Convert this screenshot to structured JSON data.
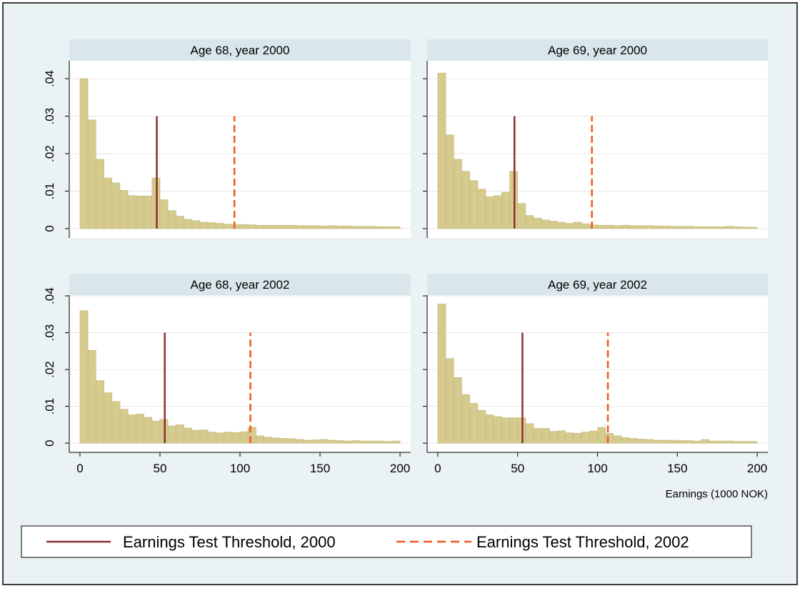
{
  "chart_data": [
    {
      "type": "histogram",
      "title": "Age 68, year 2000",
      "color": "#d6cb8e",
      "bins": [
        0,
        5,
        10,
        15,
        20,
        25,
        30,
        35,
        40,
        45,
        50,
        55,
        60,
        65,
        70,
        75,
        80,
        85,
        90,
        95,
        100,
        105,
        110,
        115,
        120,
        125,
        130,
        135,
        140,
        145,
        150,
        155,
        160,
        165,
        170,
        175,
        180,
        185,
        190,
        195,
        200
      ],
      "values": [
        0.04,
        0.029,
        0.0185,
        0.0135,
        0.0122,
        0.0102,
        0.0088,
        0.0087,
        0.0087,
        0.0135,
        0.0077,
        0.0048,
        0.0033,
        0.0025,
        0.0021,
        0.0017,
        0.0016,
        0.0014,
        0.0012,
        0.0011,
        0.0011,
        0.001,
        0.0009,
        0.0009,
        0.0009,
        0.0009,
        0.0009,
        0.0008,
        0.0008,
        0.0008,
        0.0007,
        0.0008,
        0.0007,
        0.0007,
        0.0006,
        0.0006,
        0.0006,
        0.0005,
        0.0005,
        0.0005
      ],
      "thresholds": [
        48,
        96.5
      ],
      "xlim": [
        -6.67,
        206.67
      ],
      "ylim": [
        -0.0025,
        0.0448
      ],
      "yticks": [
        0,
        {
          "value": 0.01,
          "label": ".01"
        },
        {
          "value": 0.02,
          "label": ".02"
        },
        {
          "value": 0.03,
          "label": ".03"
        },
        {
          "value": 0.04,
          "label": ".04"
        }
      ],
      "grid": true
    },
    {
      "type": "histogram",
      "title": "Age 69, year 2000",
      "color": "#d6cb8e",
      "bins": [
        0,
        5,
        10,
        15,
        20,
        25,
        30,
        35,
        40,
        45,
        50,
        55,
        60,
        65,
        70,
        75,
        80,
        85,
        90,
        95,
        100,
        105,
        110,
        115,
        120,
        125,
        130,
        135,
        140,
        145,
        150,
        155,
        160,
        165,
        170,
        175,
        180,
        185,
        190,
        195,
        200
      ],
      "values": [
        0.0415,
        0.025,
        0.0185,
        0.0153,
        0.0128,
        0.0105,
        0.0085,
        0.0088,
        0.0097,
        0.0153,
        0.0067,
        0.0035,
        0.0028,
        0.0023,
        0.002,
        0.0017,
        0.0014,
        0.0017,
        0.0013,
        0.001,
        0.0009,
        0.0009,
        0.0008,
        0.0009,
        0.0008,
        0.0008,
        0.0008,
        0.0007,
        0.0007,
        0.0006,
        0.0006,
        0.0006,
        0.0005,
        0.0005,
        0.0005,
        0.0005,
        0.0006,
        0.0005,
        0.0004,
        0.0004
      ],
      "thresholds": [
        48,
        96.5
      ],
      "xlim": [
        -6.67,
        206.67
      ],
      "ylim": [
        -0.0025,
        0.0448
      ],
      "yticks": [
        0,
        0.01,
        0.02,
        0.03,
        0.04
      ],
      "grid": true
    },
    {
      "type": "histogram",
      "title": "Age 68, year 2002",
      "color": "#d6cb8e",
      "bins": [
        0,
        5,
        10,
        15,
        20,
        25,
        30,
        35,
        40,
        45,
        50,
        55,
        60,
        65,
        70,
        75,
        80,
        85,
        90,
        95,
        100,
        105,
        110,
        115,
        120,
        125,
        130,
        135,
        140,
        145,
        150,
        155,
        160,
        165,
        170,
        175,
        180,
        185,
        190,
        195,
        200
      ],
      "values": [
        0.036,
        0.0252,
        0.017,
        0.0137,
        0.0113,
        0.0092,
        0.0077,
        0.0079,
        0.007,
        0.006,
        0.0065,
        0.0047,
        0.005,
        0.0041,
        0.0035,
        0.0036,
        0.003,
        0.0028,
        0.003,
        0.0029,
        0.0031,
        0.0043,
        0.002,
        0.0016,
        0.0014,
        0.0013,
        0.0012,
        0.001,
        0.0008,
        0.0009,
        0.001,
        0.0008,
        0.0007,
        0.0006,
        0.0007,
        0.0006,
        0.0006,
        0.0006,
        0.0005,
        0.0006
      ],
      "thresholds": [
        53,
        106.5
      ],
      "xlim": [
        -6.67,
        206.67
      ],
      "ylim": [
        -0.0025,
        0.0402
      ],
      "xticks": [
        0,
        50,
        100,
        150,
        200
      ],
      "yticks": [
        0,
        {
          "value": 0.01,
          "label": ".01"
        },
        {
          "value": 0.02,
          "label": ".02"
        },
        {
          "value": 0.03,
          "label": ".03"
        },
        {
          "value": 0.04,
          "label": ".04"
        }
      ],
      "grid": true
    },
    {
      "type": "histogram",
      "title": "Age 69, year 2002",
      "color": "#d6cb8e",
      "bins": [
        0,
        5,
        10,
        15,
        20,
        25,
        30,
        35,
        40,
        45,
        50,
        55,
        60,
        65,
        70,
        75,
        80,
        85,
        90,
        95,
        100,
        105,
        110,
        115,
        120,
        125,
        130,
        135,
        140,
        145,
        150,
        155,
        160,
        165,
        170,
        175,
        180,
        185,
        190,
        195,
        200
      ],
      "values": [
        0.0378,
        0.023,
        0.0178,
        0.0132,
        0.0108,
        0.0089,
        0.0077,
        0.0072,
        0.0069,
        0.0069,
        0.0069,
        0.0053,
        0.004,
        0.004,
        0.0032,
        0.0034,
        0.0028,
        0.0027,
        0.003,
        0.0033,
        0.0043,
        0.0027,
        0.002,
        0.0015,
        0.0013,
        0.0011,
        0.001,
        0.0008,
        0.0008,
        0.0008,
        0.0007,
        0.0007,
        0.0006,
        0.001,
        0.0006,
        0.0006,
        0.0006,
        0.0005,
        0.0005,
        0.0005
      ],
      "thresholds": [
        53,
        106.5
      ],
      "xlim": [
        -6.67,
        206.67
      ],
      "ylim": [
        -0.0025,
        0.0402
      ],
      "xticks": [
        0,
        50,
        100,
        150,
        200
      ],
      "yticks": [
        0,
        0.01,
        0.02,
        0.03,
        0.04
      ],
      "grid": true
    }
  ],
  "threshold_height": 0.03,
  "x_label": "Earnings (1000 NOK)",
  "legend": [
    {
      "name": "Earnings Test Threshold, 2000",
      "color": "#8b2f2f",
      "dash": false
    },
    {
      "name": "Earnings Test Threshold, 2002",
      "color": "#f2561d",
      "dash": true
    }
  ]
}
